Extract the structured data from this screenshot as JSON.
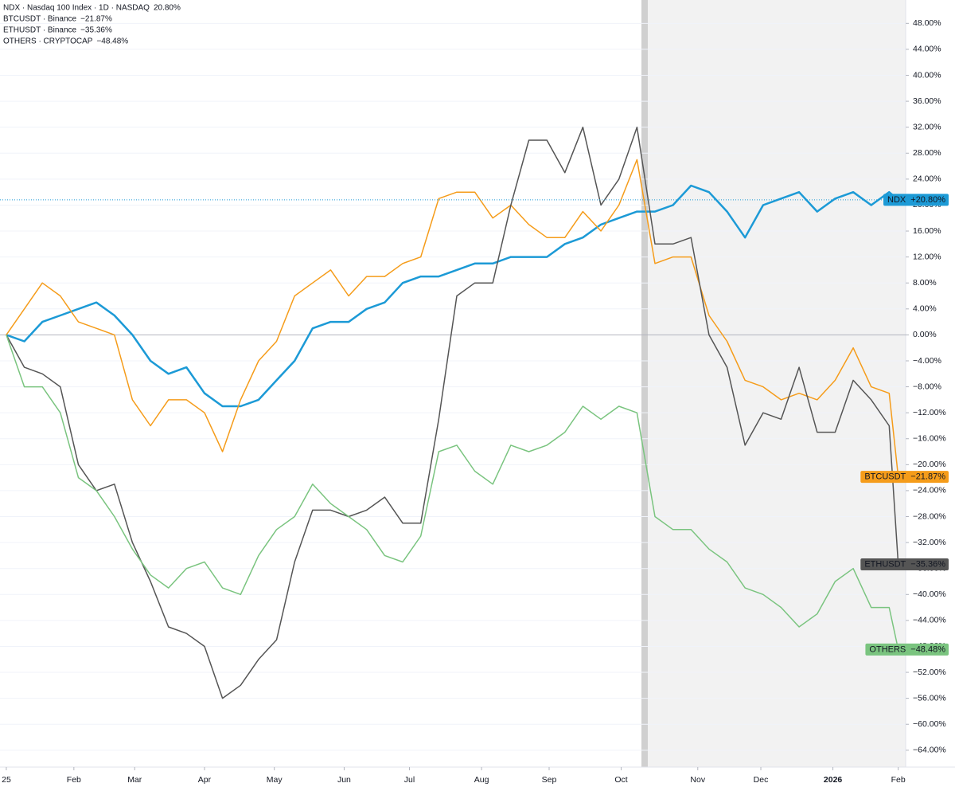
{
  "chart_data": {
    "type": "line",
    "x": [
      0,
      8,
      16,
      24,
      32,
      40,
      48,
      56,
      64,
      72,
      80,
      88,
      96,
      104,
      112,
      120,
      128,
      136,
      144,
      152,
      160,
      168,
      176,
      184,
      192,
      200,
      208,
      216,
      224,
      232,
      240,
      248,
      256,
      264,
      272,
      280,
      288,
      296,
      304,
      312,
      320,
      328,
      336,
      344,
      352,
      360,
      368,
      376,
      384,
      392,
      396
    ],
    "xlim": [
      -2.8,
      399.3
    ],
    "xticks": [
      {
        "value": 0,
        "label": "25"
      },
      {
        "value": 30,
        "label": "Feb"
      },
      {
        "value": 57,
        "label": "Mar"
      },
      {
        "value": 88,
        "label": "Apr"
      },
      {
        "value": 119,
        "label": "May"
      },
      {
        "value": 150,
        "label": "Jun"
      },
      {
        "value": 179,
        "label": "Jul"
      },
      {
        "value": 211,
        "label": "Aug"
      },
      {
        "value": 241,
        "label": "Sep"
      },
      {
        "value": 273,
        "label": "Oct"
      },
      {
        "value": 307,
        "label": "Nov"
      },
      {
        "value": 335,
        "label": "Dec"
      },
      {
        "value": 367,
        "label": "2026"
      },
      {
        "value": 396,
        "label": "Feb"
      }
    ],
    "ylim": [
      -66.6,
      51.6
    ],
    "yticks": [
      {
        "value": 48,
        "label": "48.00%"
      },
      {
        "value": 44,
        "label": "44.00%"
      },
      {
        "value": 40,
        "label": "40.00%"
      },
      {
        "value": 36,
        "label": "36.00%"
      },
      {
        "value": 32,
        "label": "32.00%"
      },
      {
        "value": 28,
        "label": "28.00%"
      },
      {
        "value": 24,
        "label": "24.00%"
      },
      {
        "value": 20,
        "label": "20.00%"
      },
      {
        "value": 16,
        "label": "16.00%"
      },
      {
        "value": 12,
        "label": "12.00%"
      },
      {
        "value": 8,
        "label": "8.00%"
      },
      {
        "value": 4,
        "label": "4.00%"
      },
      {
        "value": 0,
        "label": "0.00%"
      },
      {
        "value": -4,
        "label": "−4.00%"
      },
      {
        "value": -8,
        "label": "−8.00%"
      },
      {
        "value": -12,
        "label": "−12.00%"
      },
      {
        "value": -16,
        "label": "−16.00%"
      },
      {
        "value": -20,
        "label": "−20.00%"
      },
      {
        "value": -24,
        "label": "−24.00%"
      },
      {
        "value": -28,
        "label": "−28.00%"
      },
      {
        "value": -32,
        "label": "−32.00%"
      },
      {
        "value": -36,
        "label": "−36.00%"
      },
      {
        "value": -40,
        "label": "−40.00%"
      },
      {
        "value": -44,
        "label": "−44.00%"
      },
      {
        "value": -48,
        "label": "−48.00%"
      },
      {
        "value": -52,
        "label": "−52.00%"
      },
      {
        "value": -56,
        "label": "−56.00%"
      },
      {
        "value": -60,
        "label": "−60.00%"
      },
      {
        "value": -64,
        "label": "−64.00%"
      }
    ],
    "grid": true,
    "series": [
      {
        "name": "NDX · Nasdaq 100 Index · 1D · NASDAQ",
        "legend_value": "20.80%",
        "tag": "NDX",
        "last_label": "+20.80%",
        "color": "#1c9ad6",
        "width": 2.5,
        "values": [
          0,
          -1,
          2,
          3,
          4,
          5,
          3,
          0,
          -4,
          -6,
          -5,
          -9,
          -11,
          -11,
          -10,
          -7,
          -4,
          1,
          2,
          2,
          4,
          5,
          8,
          9,
          9,
          10,
          11,
          11,
          12,
          12,
          12,
          14,
          15,
          17,
          18,
          19,
          19,
          20,
          23,
          22,
          19,
          15,
          20,
          21,
          22,
          19,
          21,
          22,
          20,
          22,
          20.8
        ]
      },
      {
        "name": "BTCUSDT · Binance",
        "legend_value": "−21.87%",
        "tag": "BTCUSDT",
        "last_label": "−21.87%",
        "color": "#f59c1a",
        "width": 1.5,
        "values": [
          0,
          4,
          8,
          6,
          2,
          1,
          0,
          -10,
          -14,
          -10,
          -10,
          -12,
          -18,
          -10,
          -4,
          -1,
          6,
          8,
          10,
          6,
          9,
          9,
          11,
          12,
          21,
          22,
          22,
          18,
          20,
          17,
          15,
          15,
          19,
          16,
          20,
          27,
          11,
          12,
          12,
          3,
          -1,
          -7,
          -8,
          -10,
          -9,
          -10,
          -7,
          -2,
          -8,
          -9,
          -21.87
        ]
      },
      {
        "name": "ETHUSDT · Binance",
        "legend_value": "−35.36%",
        "tag": "ETHUSDT",
        "last_label": "−35.36%",
        "color": "#555555",
        "width": 1.5,
        "values": [
          0,
          -5,
          -6,
          -8,
          -20,
          -24,
          -23,
          -32,
          -38,
          -45,
          -46,
          -48,
          -56,
          -54,
          -50,
          -47,
          -35,
          -27,
          -27,
          -28,
          -27,
          -25,
          -29,
          -29,
          -13,
          6,
          8,
          8,
          20,
          30,
          30,
          25,
          32,
          20,
          24,
          32,
          14,
          14,
          15,
          0,
          -5,
          -17,
          -12,
          -13,
          -5,
          -15,
          -15,
          -7,
          -10,
          -14,
          -35.36
        ]
      },
      {
        "name": "OTHERS · CRYPTOCAP",
        "legend_value": "−48.48%",
        "tag": "OTHERS",
        "last_label": "−48.48%",
        "color": "#7ac47f",
        "width": 1.5,
        "values": [
          0,
          -8,
          -8,
          -12,
          -22,
          -24,
          -28,
          -33,
          -37,
          -39,
          -36,
          -35,
          -39,
          -40,
          -34,
          -30,
          -28,
          -23,
          -26,
          -28,
          -30,
          -34,
          -35,
          -31,
          -18,
          -17,
          -21,
          -23,
          -17,
          -18,
          -17,
          -15,
          -11,
          -13,
          -11,
          -12,
          -28,
          -30,
          -30,
          -33,
          -35,
          -39,
          -40,
          -42,
          -45,
          -43,
          -38,
          -36,
          -42,
          -42,
          -48.48
        ]
      }
    ]
  }
}
